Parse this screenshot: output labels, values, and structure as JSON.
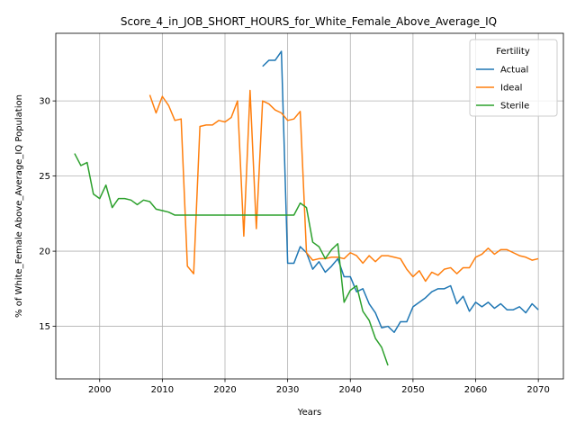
{
  "chart_data": {
    "type": "line",
    "title": "Score_4_in_JOB_SHORT_HOURS_for_White_Female_Above_Average_IQ",
    "xlabel": "Years",
    "ylabel": "% of White_Female Above_Average_IQ Population",
    "xlim": [
      1993,
      2074
    ],
    "ylim": [
      11.5,
      34.5
    ],
    "xticks": [
      2000,
      2010,
      2020,
      2030,
      2040,
      2050,
      2060,
      2070
    ],
    "yticks": [
      15,
      20,
      25,
      30
    ],
    "grid": true,
    "legend": {
      "title": "Fertility",
      "placement": "top-right"
    },
    "series": [
      {
        "name": "Actual",
        "color": "#1f77b4",
        "x": [
          2026,
          2027,
          2028,
          2029,
          2030,
          2031,
          2032,
          2033,
          2034,
          2035,
          2036,
          2037,
          2038,
          2039,
          2040,
          2041,
          2042,
          2043,
          2044,
          2045,
          2046,
          2047,
          2048,
          2049,
          2050,
          2051,
          2052,
          2053,
          2054,
          2055,
          2056,
          2057,
          2058,
          2059,
          2060,
          2061,
          2062,
          2063,
          2064,
          2065,
          2066,
          2067,
          2068,
          2069,
          2070
        ],
        "y": [
          32.3,
          32.7,
          32.7,
          33.3,
          19.2,
          19.2,
          20.3,
          19.9,
          18.8,
          19.3,
          18.6,
          19.0,
          19.5,
          18.3,
          18.3,
          17.3,
          17.5,
          16.5,
          15.9,
          14.9,
          15.0,
          14.6,
          15.3,
          15.3,
          16.3,
          16.6,
          16.9,
          17.3,
          17.5,
          17.5,
          17.7,
          16.5,
          17.0,
          16.0,
          16.6,
          16.3,
          16.6,
          16.2,
          16.5,
          16.1,
          16.1,
          16.3,
          15.9,
          16.5,
          16.1
        ]
      },
      {
        "name": "Ideal",
        "color": "#ff7f0e",
        "x": [
          2008,
          2009,
          2010,
          2011,
          2012,
          2013,
          2014,
          2015,
          2016,
          2017,
          2018,
          2019,
          2020,
          2021,
          2022,
          2023,
          2024,
          2025,
          2026,
          2027,
          2028,
          2029,
          2030,
          2031,
          2032,
          2033,
          2034,
          2035,
          2036,
          2037,
          2038,
          2039,
          2040,
          2041,
          2042,
          2043,
          2044,
          2045,
          2046,
          2047,
          2048,
          2049,
          2050,
          2051,
          2052,
          2053,
          2054,
          2055,
          2056,
          2057,
          2058,
          2059,
          2060,
          2061,
          2062,
          2063,
          2064,
          2065,
          2066,
          2067,
          2068,
          2069,
          2070
        ],
        "y": [
          30.4,
          29.2,
          30.3,
          29.7,
          28.7,
          28.8,
          19.0,
          18.5,
          28.3,
          28.4,
          28.4,
          28.7,
          28.6,
          28.9,
          30.0,
          21.0,
          30.7,
          21.5,
          30.0,
          29.8,
          29.4,
          29.2,
          28.7,
          28.8,
          29.3,
          19.9,
          19.4,
          19.5,
          19.5,
          19.6,
          19.6,
          19.5,
          19.9,
          19.7,
          19.2,
          19.7,
          19.3,
          19.7,
          19.7,
          19.6,
          19.5,
          18.8,
          18.3,
          18.7,
          18.0,
          18.6,
          18.4,
          18.8,
          18.9,
          18.5,
          18.9,
          18.9,
          19.6,
          19.8,
          20.2,
          19.8,
          20.1,
          20.1,
          19.9,
          19.7,
          19.6,
          19.4,
          19.5
        ]
      },
      {
        "name": "Sterile",
        "color": "#2ca02c",
        "x": [
          1996,
          1997,
          1998,
          1999,
          2000,
          2001,
          2002,
          2003,
          2004,
          2005,
          2006,
          2007,
          2008,
          2009,
          2010,
          2011,
          2012,
          2013,
          2014,
          2015,
          2016,
          2017,
          2018,
          2019,
          2020,
          2021,
          2022,
          2023,
          2024,
          2025,
          2026,
          2027,
          2028,
          2029,
          2030,
          2031,
          2032,
          2033,
          2034,
          2035,
          2036,
          2037,
          2038,
          2039,
          2040,
          2041,
          2042,
          2043,
          2044,
          2045,
          2046
        ],
        "y": [
          26.5,
          25.7,
          25.9,
          23.8,
          23.5,
          24.4,
          22.9,
          23.5,
          23.5,
          23.4,
          23.1,
          23.4,
          23.3,
          22.8,
          22.7,
          22.6,
          22.4,
          22.4,
          22.4,
          22.4,
          22.4,
          22.4,
          22.4,
          22.4,
          22.4,
          22.4,
          22.4,
          22.4,
          22.4,
          22.4,
          22.4,
          22.4,
          22.4,
          22.4,
          22.4,
          22.4,
          23.2,
          22.9,
          20.6,
          20.3,
          19.5,
          20.1,
          20.5,
          16.6,
          17.4,
          17.7,
          16.0,
          15.4,
          14.2,
          13.6,
          12.4
        ]
      }
    ]
  }
}
